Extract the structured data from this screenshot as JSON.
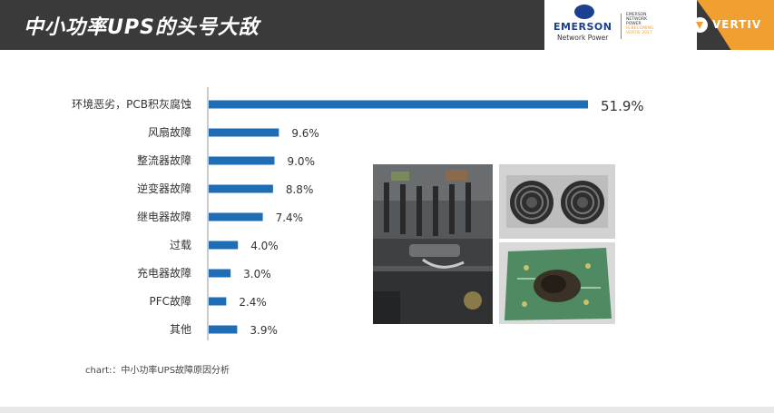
{
  "header": {
    "title": "中小功率UPS的头号大敌",
    "emerson_word": "EMERSON",
    "emerson_sub": "Network Power",
    "emerson_tag": [
      "EMERSON",
      "NETWORK",
      "POWER"
    ],
    "emerson_tag_accent": [
      "IS BECOMING",
      "VERTIV 2017"
    ],
    "vertiv_word": "VERTIV"
  },
  "caption": "chart:：中小功率UPS故障原因分析",
  "chart_data": {
    "type": "bar",
    "orientation": "horizontal",
    "categories": [
      "环境恶劣，PCB积灰腐蚀",
      "风扇故障",
      "整流器故障",
      "逆变器故障",
      "继电器故障",
      "过载",
      "充电器故障",
      "PFC故障",
      "其他"
    ],
    "values": [
      51.9,
      9.6,
      9.0,
      8.8,
      7.4,
      4.0,
      3.0,
      2.4,
      3.9
    ],
    "value_labels": [
      "51.9%",
      "9.6%",
      "9.0%",
      "8.8%",
      "7.4%",
      "4.0%",
      "3.0%",
      "2.4%",
      "3.9%"
    ],
    "unit": "%",
    "xlim": [
      0,
      51.9
    ],
    "grid": false,
    "bar_color": "#1f6db5"
  },
  "colors": {
    "header_bg": "#3a3a3a",
    "accent_orange": "#f0a030",
    "emerson_blue": "#1c3f8f"
  }
}
